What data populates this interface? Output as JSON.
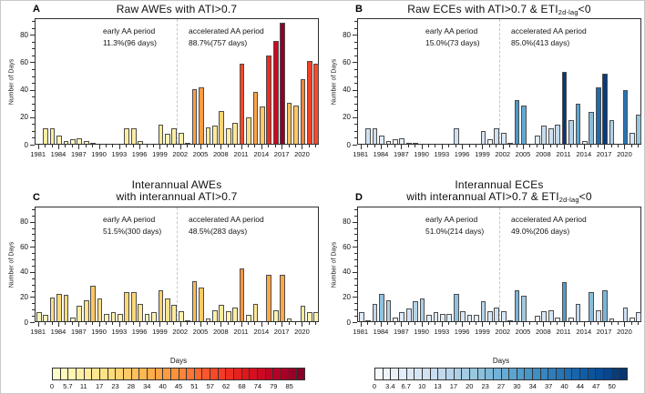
{
  "figure": {
    "ylabel": "Number of Days",
    "start_year": 1981,
    "end_year": 2022,
    "xtick_label_step": 3,
    "x_tick_labels": [
      "1981",
      "1984",
      "1987",
      "1990",
      "1993",
      "1996",
      "1999",
      "2002",
      "2005",
      "2008",
      "2011",
      "2014",
      "2017",
      "2020"
    ],
    "yticks_major": [
      0,
      20,
      40,
      60,
      80
    ],
    "yticks_minor_step": 5,
    "ylim": [
      0,
      92
    ],
    "divider_between_years": "2001 | 2002",
    "grid": "off",
    "years": [
      1981,
      1982,
      1983,
      1984,
      1985,
      1986,
      1987,
      1988,
      1989,
      1990,
      1991,
      1992,
      1993,
      1994,
      1995,
      1996,
      1997,
      1998,
      1999,
      2000,
      2001,
      2002,
      2003,
      2004,
      2005,
      2006,
      2007,
      2008,
      2009,
      2010,
      2011,
      2012,
      2013,
      2014,
      2015,
      2016,
      2017,
      2018,
      2019,
      2020,
      2021,
      2022
    ]
  },
  "chart_data": [
    {
      "panel": "A",
      "type": "bar",
      "title_lines": [
        [
          {
            "text": "Raw AWEs with ATI>0.7",
            "sub": false
          }
        ]
      ],
      "colormap": "warm",
      "annotations": {
        "early": {
          "line1": "early AA period",
          "line2": "11.3%(96 days)"
        },
        "accel": {
          "line1": "accelerated AA period",
          "line2": "88.7%(757 days)"
        }
      },
      "values": [
        0,
        11,
        11,
        6,
        2,
        3,
        4,
        2,
        1,
        0,
        0,
        0,
        0,
        11,
        11,
        2,
        0,
        0,
        14,
        7,
        11,
        8,
        1,
        40,
        41,
        12,
        13,
        24,
        11,
        15,
        58,
        19,
        38,
        27,
        64,
        75,
        88,
        30,
        28,
        47,
        60,
        58
      ]
    },
    {
      "panel": "B",
      "type": "bar",
      "title_lines": [
        [
          {
            "text": "Raw ECEs with ATI>0.7 & ETI",
            "sub": false
          },
          {
            "text": "2d-lag",
            "sub": true
          },
          {
            "text": "<0",
            "sub": false
          }
        ]
      ],
      "colormap": "blue",
      "annotations": {
        "early": {
          "line1": "early AA period",
          "line2": "15.0%(73 days)"
        },
        "accel": {
          "line1": "accelerated AA period",
          "line2": "85.0%(413 days)"
        }
      },
      "values": [
        0,
        11,
        11,
        6,
        2,
        3,
        4,
        1,
        1,
        0,
        0,
        0,
        0,
        0,
        11,
        0,
        0,
        0,
        9,
        3,
        11,
        8,
        1,
        32,
        28,
        0,
        6,
        13,
        11,
        14,
        52,
        17,
        29,
        2,
        23,
        41,
        51,
        17,
        0,
        39,
        8,
        21
      ]
    },
    {
      "panel": "C",
      "type": "bar",
      "title_lines": [
        [
          {
            "text": "Interannual AWEs",
            "sub": false
          }
        ],
        [
          {
            "text": "with interannual ATI>0.7",
            "sub": false
          }
        ]
      ],
      "colormap": "warm",
      "annotations": {
        "early": {
          "line1": "early AA period",
          "line2": "51.5%(300 days)"
        },
        "accel": {
          "line1": "accelerated AA period",
          "line2": "48.5%(283 days)"
        }
      },
      "values": [
        7,
        5,
        19,
        22,
        21,
        3,
        12,
        17,
        28,
        18,
        6,
        7,
        6,
        23,
        23,
        14,
        6,
        7,
        25,
        18,
        13,
        8,
        1,
        32,
        27,
        2,
        9,
        13,
        8,
        11,
        42,
        5,
        14,
        0,
        37,
        9,
        37,
        2,
        0,
        12,
        7,
        7
      ]
    },
    {
      "panel": "D",
      "type": "bar",
      "title_lines": [
        [
          {
            "text": "Interannual ECEs",
            "sub": false
          }
        ],
        [
          {
            "text": "with interannual ATI>0.7 & ETI",
            "sub": false
          },
          {
            "text": "2d-lag",
            "sub": true
          },
          {
            "text": "<0",
            "sub": false
          }
        ]
      ],
      "colormap": "blue",
      "annotations": {
        "early": {
          "line1": "early AA period",
          "line2": "51.0%(214 days)"
        },
        "accel": {
          "line1": "accelerated AA period",
          "line2": "49.0%(206 days)"
        }
      },
      "values": [
        7,
        1,
        14,
        22,
        17,
        3,
        7,
        10,
        16,
        18,
        5,
        7,
        6,
        6,
        22,
        8,
        5,
        5,
        16,
        8,
        11,
        8,
        1,
        25,
        20,
        0,
        4,
        8,
        9,
        3,
        31,
        3,
        14,
        0,
        23,
        9,
        25,
        2,
        0,
        11,
        3,
        7
      ]
    }
  ],
  "colorbars": [
    {
      "label": "Days",
      "colormap": "warm",
      "segments": 32,
      "tick_labels": [
        "0",
        "5.7",
        "11",
        "17",
        "23",
        "28",
        "34",
        "40",
        "45",
        "51",
        "57",
        "62",
        "68",
        "74",
        "79",
        "85"
      ],
      "range_max": 90.7
    },
    {
      "label": "Days",
      "colormap": "blue",
      "segments": 32,
      "tick_labels": [
        "0",
        "3.4",
        "6.7",
        "10",
        "13",
        "17",
        "20",
        "23",
        "27",
        "30",
        "34",
        "37",
        "40",
        "44",
        "47",
        "50"
      ],
      "range_max": 53.3
    }
  ],
  "colors": {
    "warm_stops": [
      "#ffffcc",
      "#ffeda0",
      "#fed976",
      "#feb24c",
      "#fd8d3c",
      "#fc4e2a",
      "#e31a1c",
      "#bd0026",
      "#800026"
    ],
    "blue_stops": [
      "#f7fbff",
      "#deebf7",
      "#c6dbef",
      "#9ecae1",
      "#6baed6",
      "#4292c6",
      "#2171b5",
      "#08519c",
      "#08306b"
    ],
    "bar_stroke": "#4d4d4d",
    "axis": "#2e2e2e",
    "divider": "#c6c6c6"
  }
}
